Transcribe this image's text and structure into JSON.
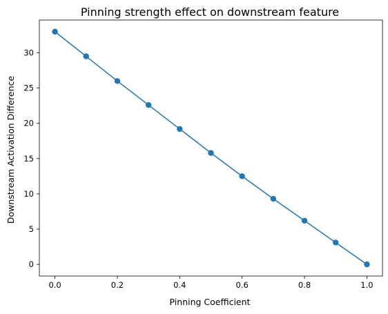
{
  "chart_data": {
    "type": "line",
    "title": "Pinning strength effect on downstream feature",
    "xlabel": "Pinning Coefficient",
    "ylabel": "Downstream Activation Difference",
    "xlim": [
      -0.05,
      1.05
    ],
    "ylim": [
      -1.65,
      34.65
    ],
    "xticks": [
      0.0,
      0.2,
      0.4,
      0.6,
      0.8,
      1.0
    ],
    "xtick_labels": [
      "0.0",
      "0.2",
      "0.4",
      "0.6",
      "0.8",
      "1.0"
    ],
    "yticks": [
      0,
      5,
      10,
      15,
      20,
      25,
      30
    ],
    "ytick_labels": [
      "0",
      "5",
      "10",
      "15",
      "20",
      "25",
      "30"
    ],
    "grid": false,
    "legend": false,
    "series": [
      {
        "color": "#1f77b4",
        "marker": "circle",
        "x": [
          0.0,
          0.1,
          0.2,
          0.3,
          0.4,
          0.5,
          0.6,
          0.7,
          0.8,
          0.9,
          1.0
        ],
        "y": [
          33.0,
          29.5,
          26.0,
          22.6,
          19.2,
          15.8,
          12.5,
          9.3,
          6.2,
          3.1,
          0.0
        ]
      }
    ]
  }
}
